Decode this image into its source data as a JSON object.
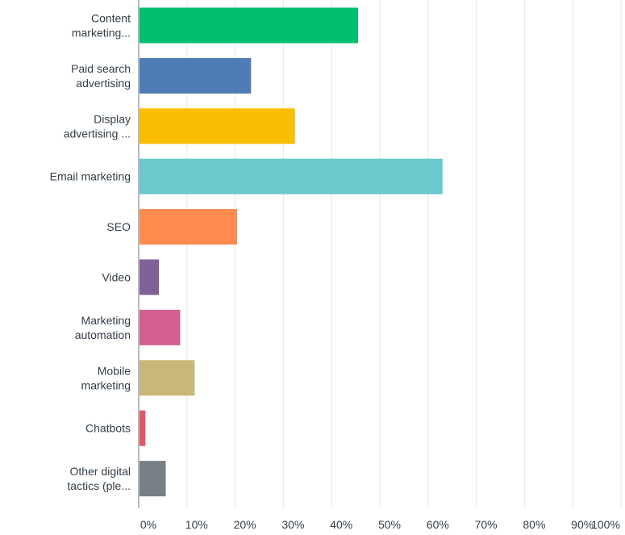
{
  "chart_data": {
    "type": "bar",
    "orientation": "horizontal",
    "categories": [
      [
        "Content",
        "marketing..."
      ],
      [
        "Paid search",
        "advertising"
      ],
      [
        "Display",
        "advertising ..."
      ],
      [
        "Email marketing"
      ],
      [
        "SEO"
      ],
      [
        "Video"
      ],
      [
        "Marketing",
        "automation"
      ],
      [
        "Mobile",
        "marketing"
      ],
      [
        "Chatbots"
      ],
      [
        "Other digital",
        "tactics (ple..."
      ]
    ],
    "values": [
      45.5,
      23.3,
      32.4,
      63.0,
      20.4,
      4.2,
      8.6,
      11.6,
      1.4,
      5.6
    ],
    "colors": [
      "#00bf6f",
      "#507cb6",
      "#f9be00",
      "#6bc8cd",
      "#ff8b4f",
      "#7f6197",
      "#d55f91",
      "#c7b879",
      "#e05766",
      "#768086"
    ],
    "xlim": [
      0,
      100
    ],
    "xticks": [
      "0%",
      "10%",
      "20%",
      "30%",
      "40%",
      "50%",
      "60%",
      "70%",
      "80%",
      "90%",
      "100%"
    ],
    "grid": true,
    "title": "",
    "xlabel": "",
    "ylabel": ""
  }
}
